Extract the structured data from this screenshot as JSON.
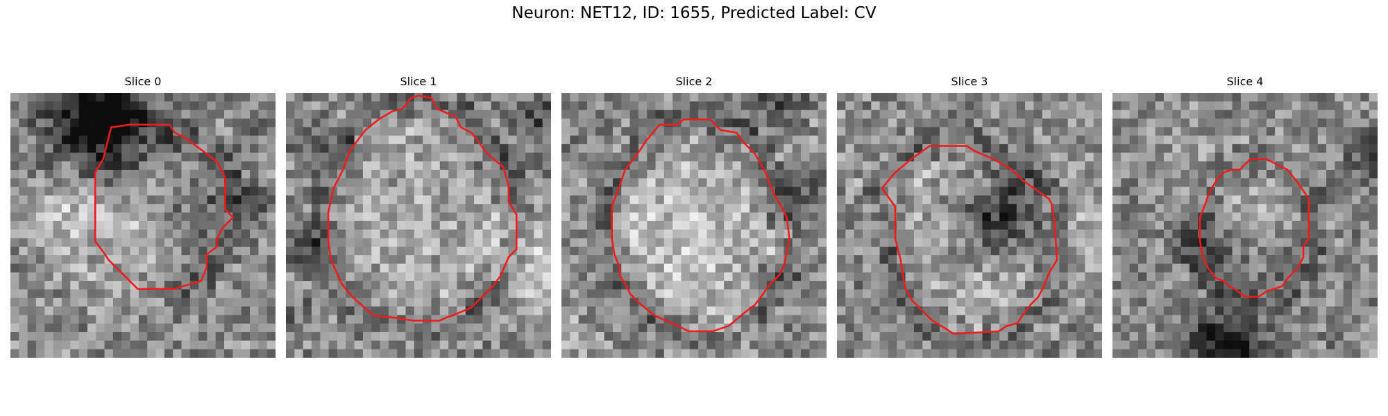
{
  "figure": {
    "title": "Neuron: NET12, ID: 1655, Predicted Label: CV"
  },
  "colors": {
    "contour": "#ee1c1c",
    "background": "#ffffff"
  },
  "panels": [
    {
      "label": "Slice 0",
      "darkness": [
        0.45,
        0.55,
        0.7,
        0.55,
        0.35,
        0.5,
        0.2,
        0.25,
        0.45,
        0.3
      ],
      "contour": [
        [
          0.38,
          0.13
        ],
        [
          0.45,
          0.12
        ],
        [
          0.6,
          0.12
        ],
        [
          0.62,
          0.15
        ],
        [
          0.66,
          0.17
        ],
        [
          0.78,
          0.26
        ],
        [
          0.81,
          0.32
        ],
        [
          0.81,
          0.44
        ],
        [
          0.84,
          0.47
        ],
        [
          0.8,
          0.51
        ],
        [
          0.78,
          0.55
        ],
        [
          0.78,
          0.58
        ],
        [
          0.74,
          0.61
        ],
        [
          0.74,
          0.66
        ],
        [
          0.72,
          0.71
        ],
        [
          0.65,
          0.73
        ],
        [
          0.62,
          0.74
        ],
        [
          0.48,
          0.74
        ],
        [
          0.37,
          0.63
        ],
        [
          0.35,
          0.6
        ],
        [
          0.32,
          0.56
        ],
        [
          0.32,
          0.3
        ],
        [
          0.35,
          0.25
        ]
      ]
    },
    {
      "label": "Slice 1",
      "darkness": [
        0.55,
        0.25,
        0.6,
        0.35,
        0.3,
        0.45,
        0.55,
        0.3,
        0.2,
        0.4
      ],
      "contour": [
        [
          0.5,
          0.01
        ],
        [
          0.55,
          0.02
        ],
        [
          0.57,
          0.06
        ],
        [
          0.64,
          0.09
        ],
        [
          0.66,
          0.13
        ],
        [
          0.7,
          0.15
        ],
        [
          0.76,
          0.23
        ],
        [
          0.82,
          0.28
        ],
        [
          0.84,
          0.35
        ],
        [
          0.84,
          0.41
        ],
        [
          0.87,
          0.46
        ],
        [
          0.87,
          0.59
        ],
        [
          0.84,
          0.62
        ],
        [
          0.81,
          0.69
        ],
        [
          0.78,
          0.73
        ],
        [
          0.74,
          0.77
        ],
        [
          0.7,
          0.81
        ],
        [
          0.63,
          0.84
        ],
        [
          0.6,
          0.85
        ],
        [
          0.58,
          0.86
        ],
        [
          0.48,
          0.86
        ],
        [
          0.42,
          0.85
        ],
        [
          0.33,
          0.84
        ],
        [
          0.25,
          0.77
        ],
        [
          0.21,
          0.72
        ],
        [
          0.17,
          0.63
        ],
        [
          0.16,
          0.56
        ],
        [
          0.16,
          0.45
        ],
        [
          0.18,
          0.36
        ],
        [
          0.22,
          0.28
        ],
        [
          0.24,
          0.22
        ],
        [
          0.3,
          0.14
        ],
        [
          0.35,
          0.1
        ],
        [
          0.4,
          0.07
        ],
        [
          0.44,
          0.06
        ],
        [
          0.47,
          0.02
        ]
      ]
    },
    {
      "label": "Slice 2",
      "darkness": [
        0.35,
        0.45,
        0.15,
        0.55,
        0.2,
        0.3,
        0.6,
        0.25,
        0.5,
        0.4
      ],
      "contour": [
        [
          0.37,
          0.12
        ],
        [
          0.44,
          0.12
        ],
        [
          0.46,
          0.1
        ],
        [
          0.56,
          0.1
        ],
        [
          0.6,
          0.14
        ],
        [
          0.66,
          0.15
        ],
        [
          0.69,
          0.19
        ],
        [
          0.73,
          0.23
        ],
        [
          0.77,
          0.3
        ],
        [
          0.8,
          0.38
        ],
        [
          0.83,
          0.43
        ],
        [
          0.85,
          0.47
        ],
        [
          0.86,
          0.55
        ],
        [
          0.84,
          0.65
        ],
        [
          0.82,
          0.69
        ],
        [
          0.78,
          0.73
        ],
        [
          0.76,
          0.76
        ],
        [
          0.73,
          0.8
        ],
        [
          0.69,
          0.83
        ],
        [
          0.63,
          0.88
        ],
        [
          0.57,
          0.9
        ],
        [
          0.48,
          0.9
        ],
        [
          0.44,
          0.88
        ],
        [
          0.35,
          0.84
        ],
        [
          0.29,
          0.79
        ],
        [
          0.26,
          0.76
        ],
        [
          0.24,
          0.72
        ],
        [
          0.22,
          0.69
        ],
        [
          0.22,
          0.66
        ],
        [
          0.2,
          0.61
        ],
        [
          0.19,
          0.55
        ],
        [
          0.19,
          0.43
        ],
        [
          0.22,
          0.35
        ],
        [
          0.24,
          0.29
        ],
        [
          0.28,
          0.24
        ],
        [
          0.32,
          0.18
        ]
      ]
    },
    {
      "label": "Slice 3",
      "darkness": [
        0.3,
        0.5,
        0.2,
        0.35,
        0.55,
        0.45,
        0.4,
        0.2,
        0.45,
        0.3
      ],
      "contour": [
        [
          0.35,
          0.2
        ],
        [
          0.49,
          0.2
        ],
        [
          0.52,
          0.22
        ],
        [
          0.59,
          0.25
        ],
        [
          0.66,
          0.29
        ],
        [
          0.7,
          0.33
        ],
        [
          0.8,
          0.4
        ],
        [
          0.81,
          0.42
        ],
        [
          0.82,
          0.48
        ],
        [
          0.83,
          0.63
        ],
        [
          0.8,
          0.68
        ],
        [
          0.78,
          0.73
        ],
        [
          0.76,
          0.77
        ],
        [
          0.73,
          0.8
        ],
        [
          0.7,
          0.84
        ],
        [
          0.68,
          0.87
        ],
        [
          0.64,
          0.88
        ],
        [
          0.61,
          0.9
        ],
        [
          0.44,
          0.91
        ],
        [
          0.41,
          0.89
        ],
        [
          0.36,
          0.86
        ],
        [
          0.32,
          0.82
        ],
        [
          0.28,
          0.78
        ],
        [
          0.26,
          0.74
        ],
        [
          0.25,
          0.7
        ],
        [
          0.24,
          0.63
        ],
        [
          0.22,
          0.55
        ],
        [
          0.22,
          0.43
        ],
        [
          0.17,
          0.36
        ],
        [
          0.22,
          0.3
        ],
        [
          0.28,
          0.25
        ]
      ]
    },
    {
      "label": "Slice 4",
      "darkness": [
        0.25,
        0.35,
        0.45,
        0.3,
        0.6,
        0.5,
        0.35,
        0.4,
        0.3,
        0.35
      ],
      "contour": [
        [
          0.38,
          0.35
        ],
        [
          0.4,
          0.32
        ],
        [
          0.42,
          0.3
        ],
        [
          0.45,
          0.29
        ],
        [
          0.48,
          0.29
        ],
        [
          0.52,
          0.25
        ],
        [
          0.58,
          0.25
        ],
        [
          0.62,
          0.27
        ],
        [
          0.66,
          0.29
        ],
        [
          0.7,
          0.34
        ],
        [
          0.74,
          0.4
        ],
        [
          0.74,
          0.55
        ],
        [
          0.72,
          0.58
        ],
        [
          0.72,
          0.62
        ],
        [
          0.7,
          0.66
        ],
        [
          0.66,
          0.7
        ],
        [
          0.64,
          0.73
        ],
        [
          0.58,
          0.75
        ],
        [
          0.55,
          0.77
        ],
        [
          0.5,
          0.77
        ],
        [
          0.46,
          0.74
        ],
        [
          0.44,
          0.73
        ],
        [
          0.42,
          0.71
        ],
        [
          0.39,
          0.7
        ],
        [
          0.36,
          0.66
        ],
        [
          0.34,
          0.62
        ],
        [
          0.33,
          0.56
        ],
        [
          0.33,
          0.47
        ],
        [
          0.35,
          0.42
        ],
        [
          0.36,
          0.39
        ]
      ]
    }
  ]
}
